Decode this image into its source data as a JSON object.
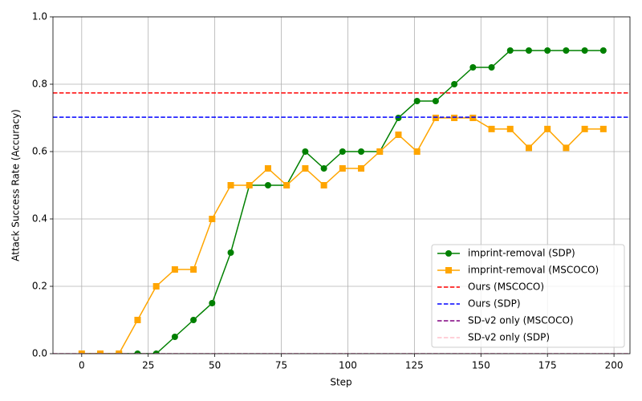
{
  "chart_data": {
    "type": "line",
    "xlabel": "Step",
    "ylabel": "Attack Success Rate (Accuracy)",
    "x": [
      0,
      7,
      14,
      21,
      28,
      35,
      42,
      49,
      56,
      63,
      70,
      77,
      84,
      91,
      98,
      105,
      112,
      119,
      126,
      133,
      140,
      147,
      154,
      161,
      168,
      175,
      182,
      189,
      196
    ],
    "series": [
      {
        "name": "imprint-removal (SDP)",
        "color": "#008000",
        "marker": "circle",
        "values": [
          0,
          0,
          0,
          0,
          0,
          0.05,
          0.1,
          0.15,
          0.3,
          0.5,
          0.5,
          0.5,
          0.6,
          0.55,
          0.6,
          0.6,
          0.6,
          0.7,
          0.75,
          0.75,
          0.8,
          0.85,
          0.85,
          0.9,
          0.9,
          0.9,
          0.9,
          0.9,
          0.9
        ]
      },
      {
        "name": "imprint-removal (MSCOCO)",
        "color": "#ffa500",
        "marker": "square",
        "values": [
          0,
          0,
          0,
          0.1,
          0.2,
          0.25,
          0.25,
          0.4,
          0.5,
          0.5,
          0.55,
          0.5,
          0.55,
          0.5,
          0.55,
          0.55,
          0.6,
          0.65,
          0.6,
          0.7,
          0.7,
          0.7,
          0.667,
          0.667,
          0.611,
          0.667,
          0.611,
          0.667,
          0.667
        ]
      }
    ],
    "reference_lines": [
      {
        "name": "Ours (MSCOCO)",
        "color": "#ff0000",
        "y": 0.774
      },
      {
        "name": "Ours (SDP)",
        "color": "#0000ff",
        "y": 0.702
      },
      {
        "name": "SD-v2 only (MSCOCO)",
        "color": "#800080",
        "y": 0
      },
      {
        "name": "SD-v2 only (SDP)",
        "color": "#ffc0cb",
        "y": 0
      }
    ],
    "xlim": [
      -10.8,
      206
    ],
    "ylim": [
      0,
      1
    ],
    "xticks": [
      0,
      25,
      50,
      75,
      100,
      125,
      150,
      175,
      200
    ],
    "yticks": [
      {
        "value": 0,
        "label": "0.0"
      },
      0.2,
      0.4,
      0.6,
      0.8,
      {
        "value": 1,
        "label": "1.0"
      }
    ],
    "grid": true,
    "legend": "lower right"
  }
}
